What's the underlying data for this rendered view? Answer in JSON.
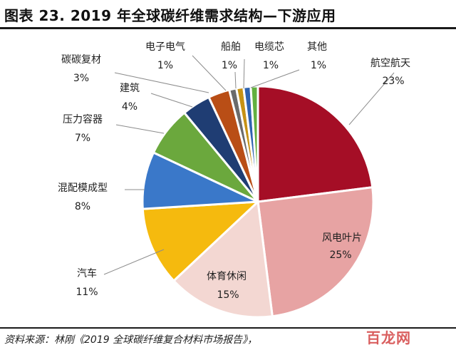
{
  "header": {
    "title": "图表 23. 2019 年全球碳纤维需求结构—下游应用"
  },
  "chart_data": {
    "type": "pie",
    "title": "图表 23. 2019 年全球碳纤维需求结构—下游应用",
    "start_angle_deg": 0,
    "direction": "clockwise",
    "slices": [
      {
        "label": "航空航天",
        "value": 23,
        "value_label": "23%",
        "color": "#A50E26"
      },
      {
        "label": "风电叶片",
        "value": 25,
        "value_label": "25%",
        "color": "#E7A3A3"
      },
      {
        "label": "体育休闲",
        "value": 15,
        "value_label": "15%",
        "color": "#F3D7D2"
      },
      {
        "label": "汽车",
        "value": 11,
        "value_label": "11%",
        "color": "#F5BA0E"
      },
      {
        "label": "混配模成型",
        "value": 8,
        "value_label": "8%",
        "color": "#3A78C9"
      },
      {
        "label": "压力容器",
        "value": 7,
        "value_label": "7%",
        "color": "#6BA83D"
      },
      {
        "label": "建筑",
        "value": 4,
        "value_label": "4%",
        "color": "#1F3D73"
      },
      {
        "label": "碳碳复材",
        "value": 3,
        "value_label": "3%",
        "color": "#B94E16"
      },
      {
        "label": "电子电气",
        "value": 1,
        "value_label": "1%",
        "color": "#6B6B6B"
      },
      {
        "label": "船舶",
        "value": 1,
        "value_label": "1%",
        "color": "#C69214"
      },
      {
        "label": "电缆芯",
        "value": 1,
        "value_label": "1%",
        "color": "#2E63B0"
      },
      {
        "label": "其他",
        "value": 1,
        "value_label": "1%",
        "color": "#63B040"
      }
    ]
  },
  "footer": {
    "source": "资料来源：林刚《2019 全球碳纤维复合材料市场报告》，",
    "watermark": "百龙网"
  }
}
